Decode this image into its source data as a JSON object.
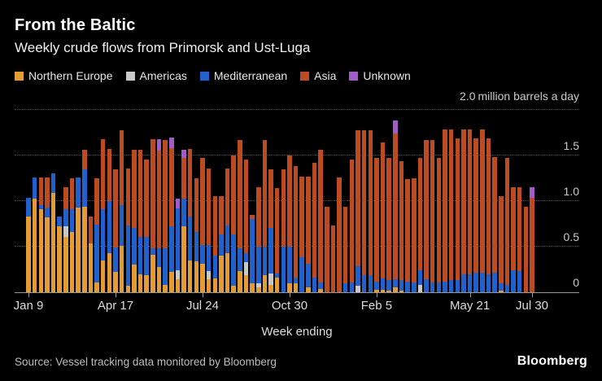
{
  "header": {
    "title": "From the Baltic",
    "subtitle": "Weekly crude flows from Primorsk and Ust-Luga"
  },
  "unit_label": {
    "tick": "2.0",
    "text": "million barrels a day"
  },
  "xaxis_title": "Week ending",
  "footer": {
    "source": "Source: Vessel tracking data monitored by Bloomberg",
    "logo": "Bloomberg"
  },
  "colors": {
    "background": "#000000",
    "northern_europe": "#E39C33",
    "americas": "#C9C9C9",
    "mediterranean": "#2161CC",
    "asia": "#BC4B22",
    "unknown": "#A15CC9",
    "gridline": "#555555",
    "axis": "#9A9A9A"
  },
  "chart_data": {
    "type": "bar",
    "stacked": true,
    "title": "From the Baltic",
    "subtitle": "Weekly crude flows from Primorsk and Ust-Luga",
    "xlabel": "Week ending",
    "ylabel": "million barrels a day",
    "ylim": [
      0,
      2.0
    ],
    "grid": "dotted horizontal",
    "legend_position": "top",
    "y_ticks": [
      {
        "value": 0,
        "label": "0"
      },
      {
        "value": 0.5,
        "label": "0.5"
      },
      {
        "value": 1.0,
        "label": "1.0"
      },
      {
        "value": 1.5,
        "label": "1.5"
      }
    ],
    "gridline_values": [
      0.5,
      1.0,
      1.5,
      2.0
    ],
    "x_ticks": [
      {
        "index": 0,
        "label": "Jan 9"
      },
      {
        "index": 14,
        "label": "Apr 17"
      },
      {
        "index": 28,
        "label": "Jul 24"
      },
      {
        "index": 42,
        "label": "Oct 30"
      },
      {
        "index": 56,
        "label": "Feb 5"
      },
      {
        "index": 71,
        "label": "May 21"
      },
      {
        "index": 81,
        "label": "Jul 30"
      }
    ],
    "series": [
      {
        "key": "northern-europe",
        "name": "Northern Europe",
        "color": "#E39C33",
        "values": [
          0.83,
          1.03,
          0.91,
          0.82,
          1.09,
          0.72,
          0.61,
          0.66,
          0.93,
          0.94,
          0.54,
          0.11,
          0.35,
          0.43,
          0.22,
          0.51,
          0.07,
          0.3,
          0.2,
          0.19,
          0.41,
          0.28,
          0.08,
          0.22,
          0.14,
          0.72,
          0.35,
          0.34,
          0.31,
          0.14,
          0.15,
          0.4,
          0.43,
          0.07,
          0.23,
          0.19,
          0.1,
          0.05,
          0.19,
          0.08,
          0.16,
          0,
          0.1,
          0.1,
          0,
          0.05,
          0,
          0.04,
          0,
          0,
          0,
          0,
          0,
          0,
          0,
          0,
          0.03,
          0.03,
          0.02,
          0.05,
          0.02,
          0,
          0,
          0,
          0,
          0,
          0,
          0,
          0,
          0,
          0,
          0,
          0,
          0,
          0,
          0,
          0.02,
          0,
          0,
          0,
          0,
          0
        ]
      },
      {
        "key": "americas",
        "name": "Americas",
        "color": "#C9C9C9",
        "values": [
          0,
          0,
          0,
          0,
          0,
          0,
          0.11,
          0,
          0,
          0,
          0,
          0,
          0,
          0,
          0,
          0,
          0,
          0,
          0,
          0,
          0,
          0,
          0,
          0,
          0.1,
          0,
          0,
          0,
          0,
          0.09,
          0,
          0,
          0,
          0,
          0,
          0.14,
          0,
          0.05,
          0,
          0.13,
          0,
          0,
          0,
          0,
          0,
          0,
          0,
          0,
          0,
          0,
          0,
          0,
          0,
          0.07,
          0,
          0,
          0,
          0,
          0,
          0,
          0,
          0,
          0,
          0.08,
          0,
          0,
          0,
          0,
          0,
          0,
          0,
          0,
          0,
          0,
          0,
          0,
          0,
          0,
          0,
          0,
          0,
          0
        ]
      },
      {
        "key": "mediterranean",
        "name": "Mediterranean",
        "color": "#2161CC",
        "values": [
          0.21,
          0.23,
          0.05,
          0.11,
          0.21,
          0.11,
          0.19,
          0.25,
          0.33,
          0.41,
          0,
          0.63,
          0.56,
          0.57,
          0.27,
          0.45,
          0.66,
          0.41,
          0.41,
          0.42,
          0.07,
          0.2,
          0.4,
          0.5,
          0.68,
          0.31,
          0.48,
          0.32,
          0.21,
          0.29,
          0.25,
          0.23,
          0.3,
          0.56,
          0.25,
          0.1,
          0.7,
          0.4,
          0.31,
          0.5,
          0.05,
          0.5,
          0.4,
          0.06,
          0.38,
          0.26,
          0.16,
          0.07,
          0,
          0,
          0,
          0.1,
          0.11,
          0.22,
          0.19,
          0.19,
          0.09,
          0.12,
          0.11,
          0.09,
          0.11,
          0.12,
          0.11,
          0.16,
          0.14,
          0.11,
          0.11,
          0.12,
          0.13,
          0.13,
          0.2,
          0.2,
          0.21,
          0.21,
          0.2,
          0.21,
          0.08,
          0.08,
          0.24,
          0.23,
          0,
          0
        ]
      },
      {
        "key": "asia",
        "name": "Asia",
        "color": "#BC4B22",
        "values": [
          0,
          0,
          0.3,
          0.33,
          0,
          0,
          0.24,
          0.34,
          0,
          0.21,
          0.29,
          0.51,
          0.77,
          0.57,
          0.86,
          0.82,
          0.63,
          0.85,
          0.95,
          0.85,
          1.2,
          1.07,
          1.19,
          0.86,
          0,
          0.44,
          0.74,
          0.59,
          0.95,
          0.84,
          0.65,
          0.42,
          0.63,
          0.87,
          1.19,
          1.03,
          0.05,
          0.65,
          1.17,
          0.64,
          0.93,
          0.85,
          1.0,
          1.22,
          0.89,
          0.96,
          1.26,
          1.45,
          0.94,
          0.73,
          1.26,
          0.84,
          1.35,
          1.49,
          1.59,
          1.59,
          1.35,
          1.49,
          1.34,
          1.6,
          1.31,
          1.12,
          1.14,
          1.23,
          1.53,
          1.56,
          1.36,
          1.67,
          1.66,
          1.56,
          1.59,
          1.59,
          1.48,
          1.58,
          1.49,
          1.27,
          0.95,
          1.39,
          0.91,
          0.92,
          0.94,
          1.04
        ]
      },
      {
        "key": "unknown",
        "name": "Unknown",
        "color": "#A15CC9",
        "values": [
          0,
          0,
          0,
          0,
          0,
          0,
          0,
          0,
          0,
          0,
          0,
          0,
          0,
          0,
          0,
          0,
          0,
          0,
          0,
          0,
          0,
          0.13,
          0,
          0.12,
          0.11,
          0.09,
          0,
          0,
          0,
          0,
          0,
          0,
          0,
          0,
          0,
          0,
          0,
          0,
          0,
          0,
          0,
          0,
          0,
          0,
          0,
          0,
          0,
          0,
          0,
          0,
          0,
          0,
          0,
          0,
          0,
          0,
          0,
          0,
          0,
          0.14,
          0,
          0,
          0,
          0,
          0,
          0,
          0,
          0,
          0,
          0,
          0,
          0,
          0,
          0,
          0,
          0,
          0,
          0,
          0,
          0,
          0,
          0.11
        ]
      }
    ]
  }
}
